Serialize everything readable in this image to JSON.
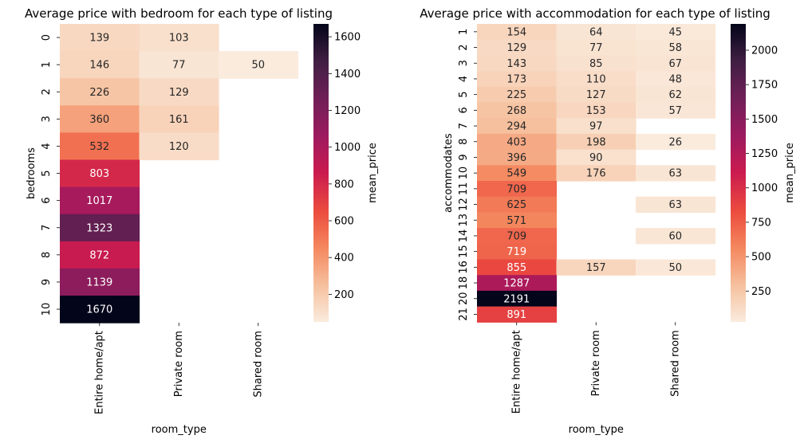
{
  "colorbar_label": "mean_price",
  "chart_data": [
    {
      "type": "heatmap",
      "title": "Average price with bedroom for each type of listing",
      "xlabel": "room_type",
      "ylabel": "bedrooms",
      "columns": [
        "Entire home/apt",
        "Private room",
        "Shared room"
      ],
      "rows": [
        "0",
        "1",
        "2",
        "3",
        "4",
        "5",
        "6",
        "7",
        "8",
        "9",
        "10"
      ],
      "values": [
        [
          139,
          103,
          null
        ],
        [
          146,
          77,
          50
        ],
        [
          226,
          129,
          null
        ],
        [
          360,
          161,
          null
        ],
        [
          532,
          120,
          null
        ],
        [
          803,
          null,
          null
        ],
        [
          1017,
          null,
          null
        ],
        [
          1323,
          null,
          null
        ],
        [
          872,
          null,
          null
        ],
        [
          1139,
          null,
          null
        ],
        [
          1670,
          null,
          null
        ]
      ],
      "color_range": [
        50,
        1670
      ],
      "colorbar_ticks": [
        200,
        400,
        600,
        800,
        1000,
        1200,
        1400,
        1600
      ],
      "colorbar_label": "mean_price"
    },
    {
      "type": "heatmap",
      "title": "Average price with accommodation for each type of listing",
      "xlabel": "room_type",
      "ylabel": "accommodates",
      "columns": [
        "Entire home/apt",
        "Private room",
        "Shared room"
      ],
      "rows": [
        "1",
        "2",
        "3",
        "4",
        "5",
        "6",
        "7",
        "8",
        "9",
        "10",
        "11",
        "12",
        "13",
        "14",
        "15",
        "16",
        "18",
        "20",
        "21"
      ],
      "values": [
        [
          154,
          64,
          45
        ],
        [
          129,
          77,
          58
        ],
        [
          143,
          85,
          67
        ],
        [
          173,
          110,
          48
        ],
        [
          225,
          127,
          62
        ],
        [
          268,
          153,
          57
        ],
        [
          294,
          97,
          null
        ],
        [
          403,
          198,
          26
        ],
        [
          396,
          90,
          null
        ],
        [
          549,
          176,
          63
        ],
        [
          709,
          null,
          null
        ],
        [
          625,
          null,
          63
        ],
        [
          571,
          null,
          null
        ],
        [
          709,
          null,
          60
        ],
        [
          719,
          null,
          null
        ],
        [
          855,
          157,
          50
        ],
        [
          1287,
          null,
          null
        ],
        [
          2191,
          null,
          null
        ],
        [
          891,
          null,
          null
        ]
      ],
      "color_range": [
        26,
        2191
      ],
      "colorbar_ticks": [
        250,
        500,
        750,
        1000,
        1250,
        1500,
        1750,
        2000
      ],
      "colorbar_label": "mean_price"
    }
  ]
}
